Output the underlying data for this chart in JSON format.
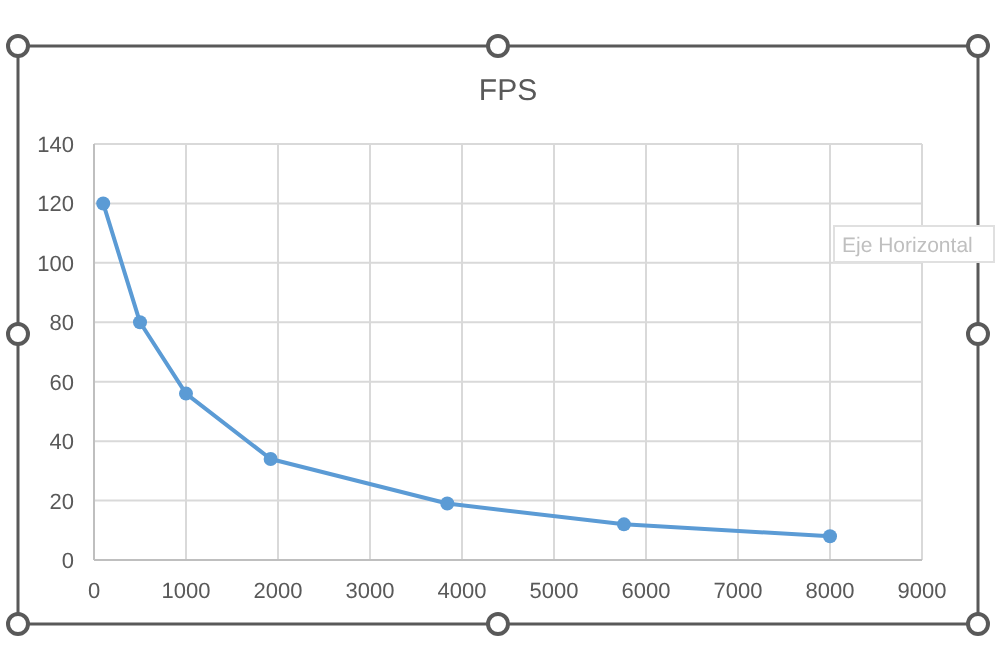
{
  "chart_data": {
    "type": "line",
    "title": "FPS",
    "x": [
      100,
      500,
      1000,
      1920,
      3840,
      5760,
      8000
    ],
    "series": [
      {
        "color": "#5b9bd5",
        "values": [
          120,
          80,
          56,
          34,
          19,
          12,
          8
        ]
      }
    ],
    "xlim": [
      0,
      9000
    ],
    "xticks": [
      0,
      1000,
      2000,
      3000,
      4000,
      5000,
      6000,
      7000,
      8000,
      9000
    ],
    "ylim": [
      0,
      140
    ],
    "yticks": [
      0,
      20,
      40,
      60,
      80,
      100,
      120,
      140
    ],
    "grid": true,
    "marker": "circle",
    "line_style": "solid",
    "annotations": [
      "Eje Horizontal"
    ]
  }
}
